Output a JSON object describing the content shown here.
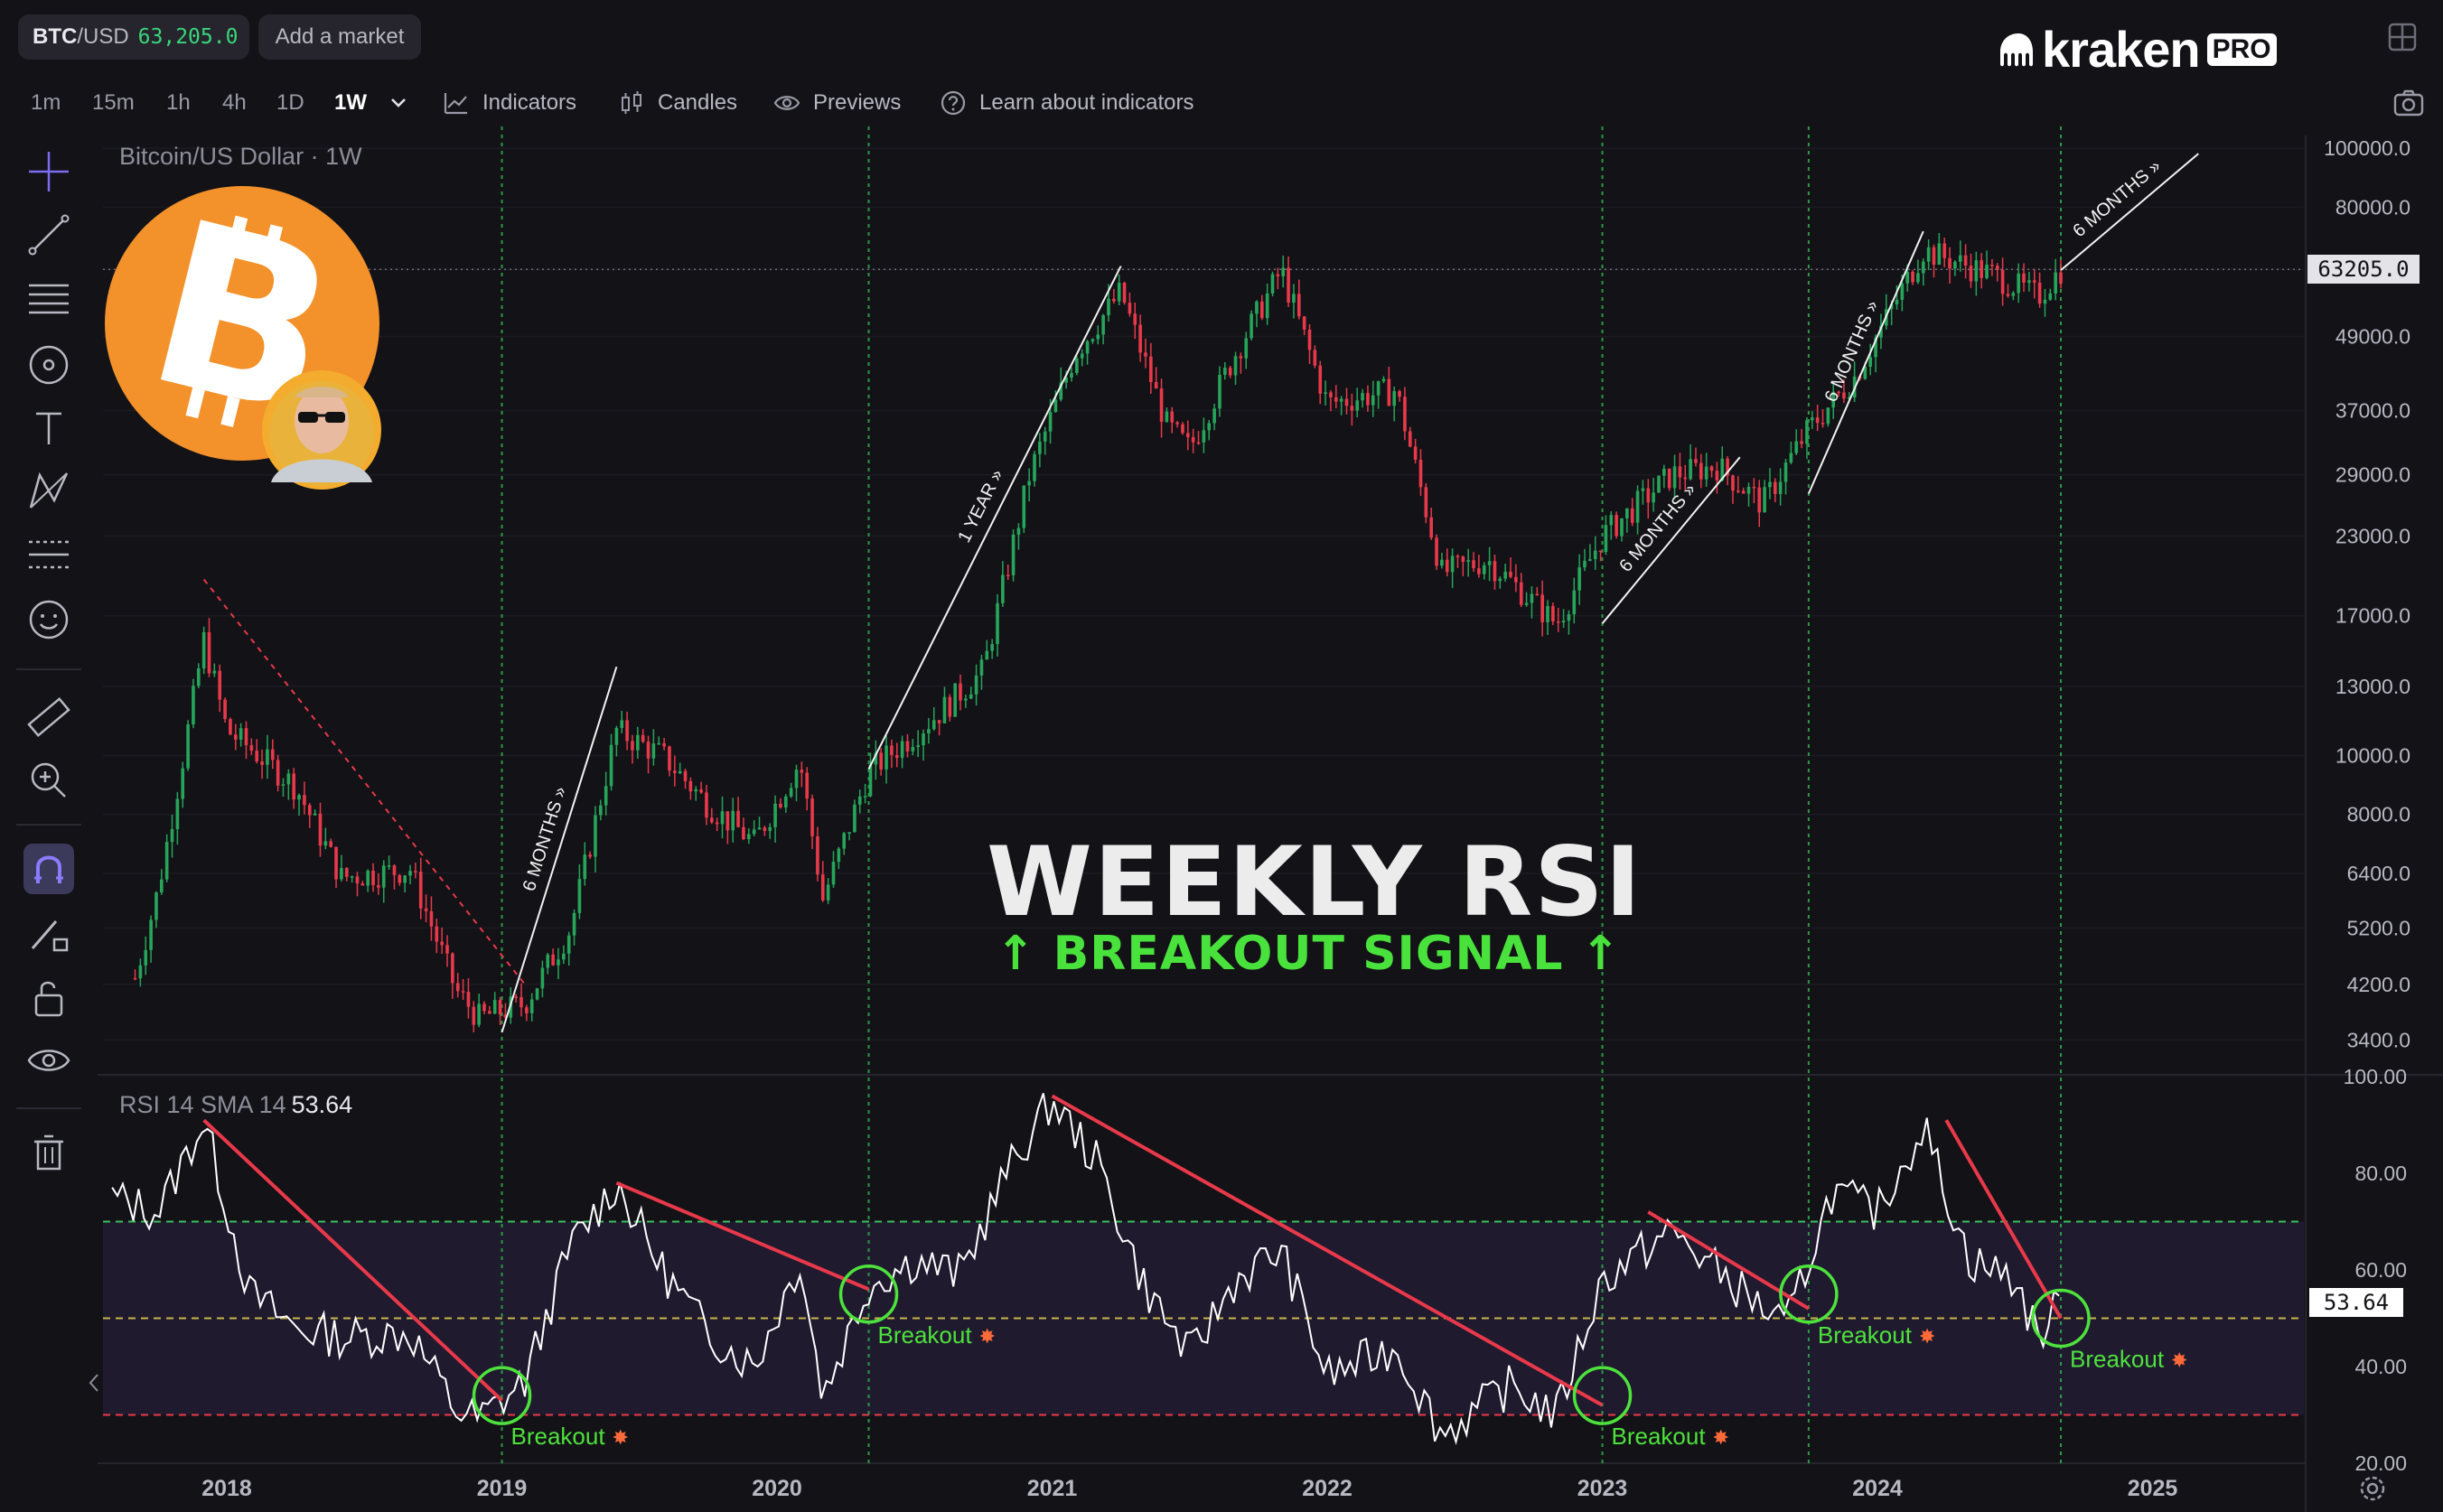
{
  "market": {
    "pair": "BTC/USD",
    "pair_base": "BTC",
    "pair_quote": "/USD",
    "price": "63,205.0",
    "add_market": "Add a market"
  },
  "brand": {
    "word": "kraken",
    "pro": "PRO"
  },
  "timeframes": [
    {
      "label": "1m",
      "active": false
    },
    {
      "label": "15m",
      "active": false
    },
    {
      "label": "1h",
      "active": false
    },
    {
      "label": "4h",
      "active": false
    },
    {
      "label": "1D",
      "active": false
    },
    {
      "label": "1W",
      "active": true
    }
  ],
  "toolbar": {
    "indicators": "Indicators",
    "candles": "Candles",
    "previews": "Previews",
    "learn": "Learn about indicators"
  },
  "left_tools": [
    "crosshair-icon",
    "trend-line-icon",
    "fib-icon",
    "brush-icon",
    "text-icon",
    "pattern-icon",
    "forecast-icon",
    "emoji-icon",
    "ruler-icon",
    "zoom-icon",
    "magnet-icon",
    "lock-drawing-icon",
    "unlock-icon",
    "eye-icon",
    "trash-icon"
  ],
  "colors": {
    "up": "#26a55a",
    "down": "#e8394a",
    "rsi_line": "#ffffff",
    "trendline": "#e8394a",
    "circle": "#4de23c",
    "breakout_text": "#4de23c",
    "accent_title": "#49e23c"
  },
  "price_pane": {
    "title": "Bitcoin/US Dollar · 1W",
    "last_price": "63205.0"
  },
  "rsi_pane": {
    "title": "RSI 14 SMA 14",
    "value": "53.64"
  },
  "headline": {
    "title": "WEEKLY RSI",
    "subtitle": "↑ BREAKOUT SIGNAL ↑"
  },
  "annotations": [
    {
      "label": "6 MONTHS »"
    },
    {
      "label": "1 YEAR »"
    },
    {
      "label": "6 MONTHS »"
    },
    {
      "label": "6 MONTHS »"
    },
    {
      "label": "6 MONTHS »"
    }
  ],
  "breakout_labels": [
    "Breakout",
    "Breakout",
    "Breakout",
    "Breakout",
    "Breakout"
  ],
  "chart_data": [
    {
      "type": "candlestick",
      "title": "Bitcoin/US Dollar · 1W",
      "y_scale": "log",
      "ylim": [
        3000,
        105000
      ],
      "x_ticks": [
        "2018",
        "2019",
        "2020",
        "2021",
        "2022",
        "2023",
        "2024",
        "2025"
      ],
      "y_ticks": [
        "100000.0",
        "80000.0",
        "63205.0",
        "49000.0",
        "37000.0",
        "29000.0",
        "23000.0",
        "17000.0",
        "13000.0",
        "10000.0",
        "8000.0",
        "6400.0",
        "5200.0",
        "4200.0",
        "3400.0"
      ],
      "close_path": [
        {
          "t": "2017-09",
          "v": 4300
        },
        {
          "t": "2017-10",
          "v": 6000
        },
        {
          "t": "2017-11",
          "v": 9500
        },
        {
          "t": "2017-12",
          "v": 15500
        },
        {
          "t": "2018-01",
          "v": 11000
        },
        {
          "t": "2018-02",
          "v": 10300
        },
        {
          "t": "2018-04",
          "v": 8900
        },
        {
          "t": "2018-06",
          "v": 6300
        },
        {
          "t": "2018-09",
          "v": 6500
        },
        {
          "t": "2018-11",
          "v": 4100
        },
        {
          "t": "2018-12",
          "v": 3700
        },
        {
          "t": "2019-02",
          "v": 3900
        },
        {
          "t": "2019-04",
          "v": 5200
        },
        {
          "t": "2019-06",
          "v": 11000
        },
        {
          "t": "2019-08",
          "v": 10000
        },
        {
          "t": "2019-10",
          "v": 8300
        },
        {
          "t": "2019-12",
          "v": 7200
        },
        {
          "t": "2020-02",
          "v": 9800
        },
        {
          "t": "2020-03",
          "v": 5800
        },
        {
          "t": "2020-05",
          "v": 9400
        },
        {
          "t": "2020-08",
          "v": 11700
        },
        {
          "t": "2020-10",
          "v": 13800
        },
        {
          "t": "2020-12",
          "v": 28900
        },
        {
          "t": "2021-02",
          "v": 46000
        },
        {
          "t": "2021-04",
          "v": 58000
        },
        {
          "t": "2021-06",
          "v": 35000
        },
        {
          "t": "2021-07",
          "v": 32000
        },
        {
          "t": "2021-09",
          "v": 46000
        },
        {
          "t": "2021-11",
          "v": 63000
        },
        {
          "t": "2022-01",
          "v": 38000
        },
        {
          "t": "2022-04",
          "v": 40000
        },
        {
          "t": "2022-06",
          "v": 20000
        },
        {
          "t": "2022-08",
          "v": 21000
        },
        {
          "t": "2022-11",
          "v": 16500
        },
        {
          "t": "2023-01",
          "v": 23000
        },
        {
          "t": "2023-04",
          "v": 29000
        },
        {
          "t": "2023-06",
          "v": 30000
        },
        {
          "t": "2023-08",
          "v": 26000
        },
        {
          "t": "2023-10",
          "v": 34500
        },
        {
          "t": "2023-12",
          "v": 42000
        },
        {
          "t": "2024-03",
          "v": 68000
        },
        {
          "t": "2024-06",
          "v": 62000
        },
        {
          "t": "2024-08",
          "v": 57000
        },
        {
          "t": "2024-09",
          "v": 63205
        }
      ]
    },
    {
      "type": "line",
      "title": "RSI 14 SMA 14",
      "ylim": [
        20,
        100
      ],
      "y_ticks": [
        "100.00",
        "80.00",
        "60.00",
        "53.64",
        "40.00",
        "20.00"
      ],
      "bands": [
        30,
        50,
        70
      ],
      "current": 53.64,
      "series": [
        {
          "values": [
            {
              "t": "2017-08",
              "v": 75
            },
            {
              "t": "2017-10",
              "v": 72
            },
            {
              "t": "2017-12",
              "v": 91
            },
            {
              "t": "2018-02",
              "v": 55
            },
            {
              "t": "2018-04",
              "v": 48
            },
            {
              "t": "2018-06",
              "v": 46
            },
            {
              "t": "2018-09",
              "v": 47
            },
            {
              "t": "2018-11",
              "v": 31
            },
            {
              "t": "2018-12",
              "v": 29
            },
            {
              "t": "2019-02",
              "v": 37
            },
            {
              "t": "2019-04",
              "v": 65
            },
            {
              "t": "2019-06",
              "v": 78
            },
            {
              "t": "2019-08",
              "v": 60
            },
            {
              "t": "2019-10",
              "v": 47
            },
            {
              "t": "2019-12",
              "v": 40
            },
            {
              "t": "2020-02",
              "v": 62
            },
            {
              "t": "2020-03",
              "v": 34
            },
            {
              "t": "2020-05",
              "v": 57
            },
            {
              "t": "2020-07",
              "v": 62
            },
            {
              "t": "2020-09",
              "v": 59
            },
            {
              "t": "2020-11",
              "v": 80
            },
            {
              "t": "2021-01",
              "v": 95
            },
            {
              "t": "2021-03",
              "v": 82
            },
            {
              "t": "2021-05",
              "v": 57
            },
            {
              "t": "2021-07",
              "v": 42
            },
            {
              "t": "2021-09",
              "v": 58
            },
            {
              "t": "2021-11",
              "v": 64
            },
            {
              "t": "2022-01",
              "v": 38
            },
            {
              "t": "2022-04",
              "v": 44
            },
            {
              "t": "2022-06",
              "v": 26
            },
            {
              "t": "2022-09",
              "v": 36
            },
            {
              "t": "2022-11",
              "v": 30
            },
            {
              "t": "2023-01",
              "v": 58
            },
            {
              "t": "2023-04",
              "v": 68
            },
            {
              "t": "2023-06",
              "v": 60
            },
            {
              "t": "2023-09",
              "v": 48
            },
            {
              "t": "2023-11",
              "v": 76
            },
            {
              "t": "2024-01",
              "v": 72
            },
            {
              "t": "2024-03",
              "v": 90
            },
            {
              "t": "2024-05",
              "v": 62
            },
            {
              "t": "2024-07",
              "v": 58
            },
            {
              "t": "2024-08",
              "v": 46
            },
            {
              "t": "2024-09",
              "v": 53.64
            }
          ]
        }
      ],
      "trendlines": [
        {
          "from": {
            "t": "2017-12",
            "v": 91
          },
          "to": {
            "t": "2019-01",
            "v": 33
          }
        },
        {
          "from": {
            "t": "2019-06",
            "v": 78
          },
          "to": {
            "t": "2020-05",
            "v": 56
          }
        },
        {
          "from": {
            "t": "2021-01",
            "v": 96
          },
          "to": {
            "t": "2023-01",
            "v": 32
          }
        },
        {
          "from": {
            "t": "2023-03",
            "v": 72
          },
          "to": {
            "t": "2023-10",
            "v": 52
          }
        },
        {
          "from": {
            "t": "2024-04",
            "v": 91
          },
          "to": {
            "t": "2024-09",
            "v": 50
          }
        }
      ]
    }
  ]
}
